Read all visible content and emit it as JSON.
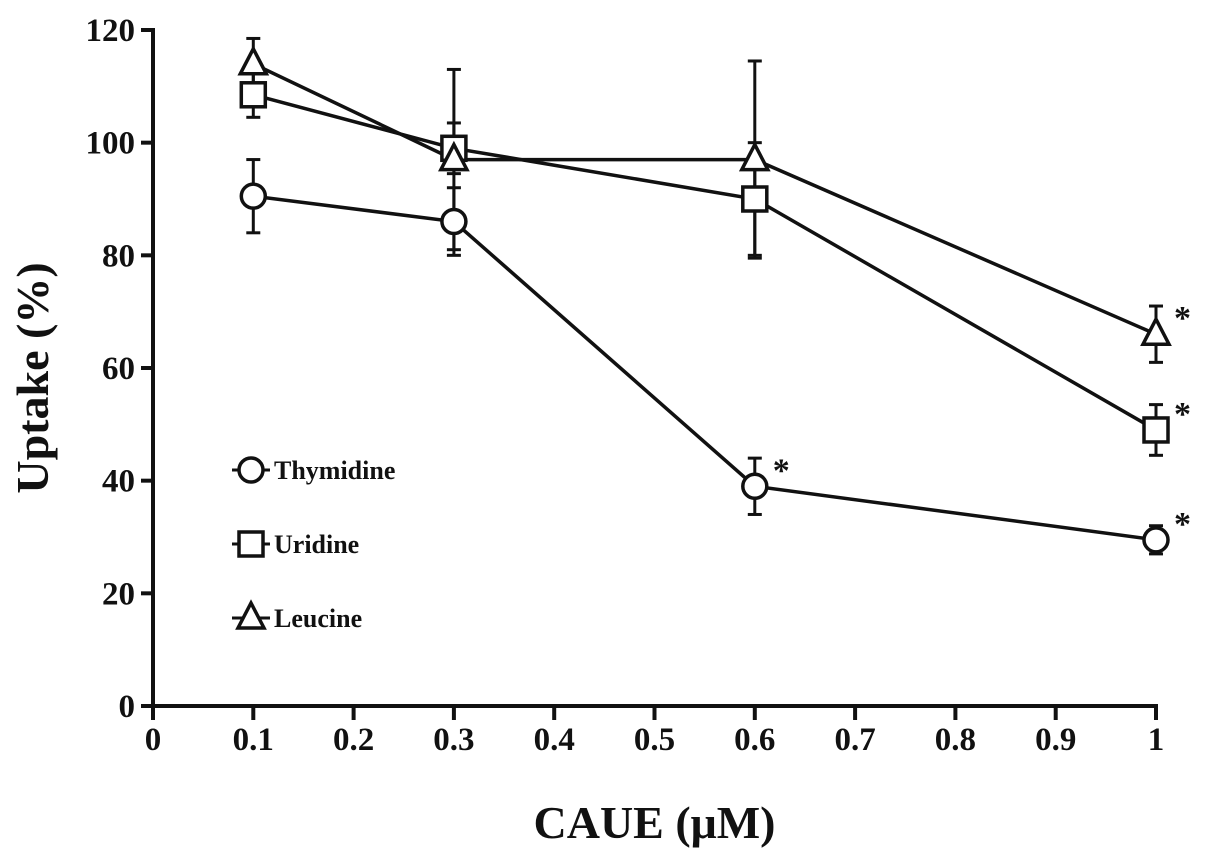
{
  "chart_data": {
    "type": "line",
    "xlabel": "CAUE (μM)",
    "ylabel": "Uptake (%)",
    "xlim": [
      0,
      1
    ],
    "ylim": [
      0,
      120
    ],
    "xticks": [
      0,
      0.1,
      0.2,
      0.3,
      0.4,
      0.5,
      0.6,
      0.7,
      0.8,
      0.9,
      1
    ],
    "xtick_labels": [
      "0",
      "0.1",
      "0.2",
      "0.3",
      "0.4",
      "0.5",
      "0.6",
      "0.7",
      "0.8",
      "0.9",
      "1"
    ],
    "yticks": [
      0,
      20,
      40,
      60,
      80,
      100,
      120
    ],
    "ytick_labels": [
      "0",
      "20",
      "40",
      "60",
      "80",
      "100",
      "120"
    ],
    "grid": false,
    "legend_position": "left",
    "x": [
      0.1,
      0.3,
      0.6,
      1
    ],
    "series": [
      {
        "name": "Thymidine",
        "marker": "circle",
        "values": [
          90.5,
          86,
          39,
          29.5
        ],
        "error": [
          6.5,
          6,
          5,
          2.5
        ],
        "significant": [
          false,
          false,
          true,
          true
        ]
      },
      {
        "name": "Uridine",
        "marker": "square",
        "values": [
          108.5,
          99,
          90,
          49
        ],
        "error": [
          4,
          4.5,
          10,
          4.5
        ],
        "significant": [
          false,
          false,
          false,
          true
        ]
      },
      {
        "name": "Leucine",
        "marker": "triangle",
        "values": [
          114,
          97,
          97,
          66
        ],
        "error": [
          4.5,
          16,
          17.5,
          5
        ],
        "significant": [
          false,
          false,
          false,
          true
        ]
      }
    ],
    "annotation_mark": "*",
    "colors": {
      "line": "#111111",
      "marker_fill": "#ffffff"
    }
  }
}
